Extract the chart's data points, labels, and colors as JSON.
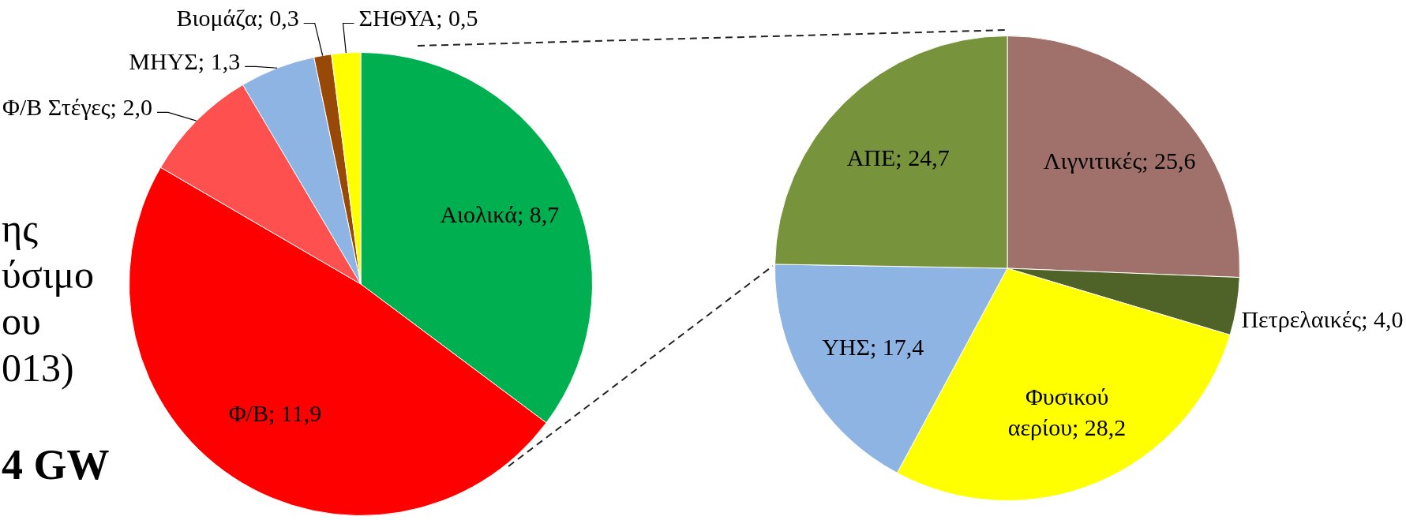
{
  "chart_data": [
    {
      "type": "pie",
      "categories": [
        "Αιολικά",
        "Φ/Β",
        "Φ/Β Στέγες",
        "ΜΗΥΣ",
        "Βιομάζα",
        "ΣΗΘΥΑ"
      ],
      "values": [
        8.7,
        11.9,
        2.0,
        1.3,
        0.3,
        0.5
      ],
      "colors": [
        "#00b050",
        "#ff0000",
        "#ff5050",
        "#8db4e2",
        "#984807",
        "#ffff00"
      ],
      "value_labels": [
        "8,7",
        "11,9",
        "2,0",
        "1,3",
        "0,3",
        "0,5"
      ],
      "annotations": [
        "ης\nύσιμο\nου\n013)",
        "4 GW"
      ]
    },
    {
      "type": "pie",
      "categories": [
        "Λιγνιτικές",
        "Πετρελαικές",
        "Φυσικού αερίου",
        "ΥΗΣ",
        "ΑΠΕ"
      ],
      "values": [
        25.6,
        4.0,
        28.2,
        17.4,
        24.7
      ],
      "colors": [
        "#a0716b",
        "#4f6228",
        "#ffff00",
        "#8db4e2",
        "#77933c"
      ],
      "value_labels": [
        "25,6",
        "4,0",
        "28,2",
        "17,4",
        "24,7"
      ]
    }
  ]
}
